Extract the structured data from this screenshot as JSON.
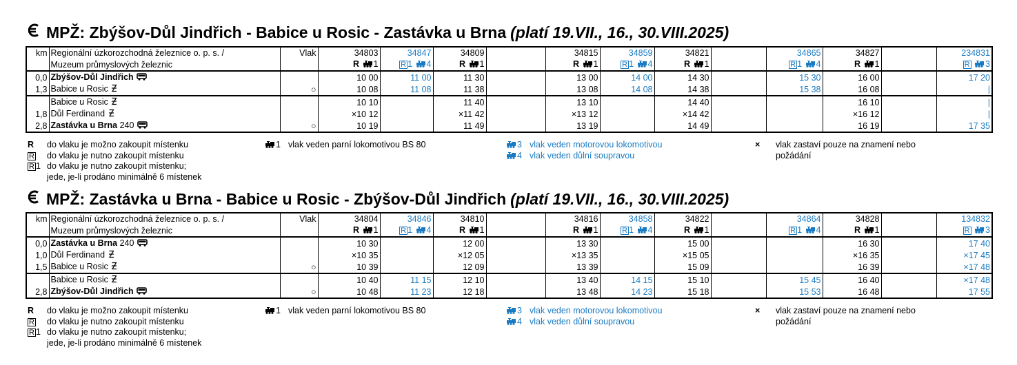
{
  "timetables": [
    {
      "title": {
        "main": "MPŽ: Zbýšov-Důl Jindřich - Babice u Rosic - Zastávka u Brna",
        "note": "(platí 19.VII., 16., 30.VIII.2025)"
      },
      "header": {
        "km": "km",
        "operator": [
          "Regionální úzkorozchodná železnice o. p. s. /",
          "Muzeum průmyslových železnic"
        ],
        "vlak": "Vlak"
      },
      "trains": [
        {
          "number": "34803",
          "mark": "R",
          "boxed": false,
          "loco": "1",
          "color": "#000000"
        },
        {
          "number": "34847",
          "mark": "R",
          "mark_sub": "1",
          "boxed": true,
          "loco": "4",
          "color": "#1a7bc3"
        },
        {
          "number": "34809",
          "mark": "R",
          "boxed": false,
          "loco": "1",
          "color": "#000000"
        },
        {
          "number": "34815",
          "mark": "R",
          "boxed": false,
          "loco": "1",
          "color": "#000000"
        },
        {
          "number": "34859",
          "mark": "R",
          "mark_sub": "1",
          "boxed": true,
          "loco": "4",
          "color": "#1a7bc3"
        },
        {
          "number": "34821",
          "mark": "R",
          "boxed": false,
          "loco": "1",
          "color": "#000000"
        },
        {
          "number": "34865",
          "mark": "R",
          "mark_sub": "1",
          "boxed": true,
          "loco": "4",
          "color": "#1a7bc3"
        },
        {
          "number": "34827",
          "mark": "R",
          "boxed": false,
          "loco": "1",
          "color": "#000000"
        },
        {
          "number": "234831",
          "mark": "R",
          "boxed": true,
          "loco": "3",
          "color": "#1a7bc3"
        }
      ],
      "group_break": 2,
      "stations": [
        {
          "km": "0,0",
          "name": "Zbýšov-Důl Jindřich",
          "bold": true,
          "icon": "bus",
          "times": [
            "10 00",
            "11 00",
            "11 30",
            "13 00",
            "14 00",
            "14 30",
            "15 30",
            "16 00",
            "17 20"
          ]
        },
        {
          "km": "1,3",
          "name": "Babice u Rosic",
          "bold": false,
          "icon": "stop",
          "symbol": "○",
          "times": [
            "10 08",
            "11 08",
            "11 38",
            "13 08",
            "14 08",
            "14 38",
            "15 38",
            "16 08",
            "|"
          ]
        },
        {
          "name": "Babice u Rosic",
          "bold": false,
          "icon": "stop",
          "times": [
            "10 10",
            null,
            "11 40",
            "13 10",
            null,
            "14 40",
            null,
            "16 10",
            "|"
          ]
        },
        {
          "km": "1,8",
          "name": "Důl Ferdinand",
          "bold": false,
          "icon": "stop",
          "times": [
            "×10 12",
            null,
            "×11 42",
            "×13 12",
            null,
            "×14 42",
            null,
            "×16 12",
            "|"
          ]
        },
        {
          "km": "2,8",
          "name": "Zastávka u Brna",
          "suffix": "240",
          "bold": true,
          "icon": "bus",
          "symbol": "○",
          "times": [
            "10 19",
            null,
            "11 49",
            "13 19",
            null,
            "14 49",
            null,
            "16 19",
            "17 35"
          ]
        }
      ],
      "legend": [
        [
          {
            "key": "R",
            "boxed": false,
            "lines": [
              "do vlaku je možno zakoupit místenku"
            ]
          },
          {
            "key": "R",
            "boxed": true,
            "lines": [
              "do vlaku je nutno zakoupit místenku"
            ]
          },
          {
            "key": "R",
            "key_sub": "1",
            "boxed": true,
            "lines": [
              "do vlaku je nutno zakoupit místenku;",
              "jede, je-li prodáno minimálně 6 místenek"
            ]
          }
        ],
        [
          {
            "loco": "1",
            "color": "#000000",
            "lines": [
              "vlak veden parní lokomotivou BS 80"
            ]
          }
        ],
        [
          {
            "loco": "3",
            "color": "#1a7bc3",
            "lines": [
              "vlak veden motorovou lokomotivou"
            ]
          },
          {
            "loco": "4",
            "color": "#1a7bc3",
            "lines": [
              "vlak veden důlní soupravou"
            ]
          }
        ],
        [
          {
            "key": "×",
            "boxed": false,
            "lines": [
              "vlak zastaví pouze na znamení nebo",
              "požádání"
            ]
          }
        ]
      ]
    },
    {
      "title": {
        "main": "MPŽ: Zastávka u Brna - Babice u Rosic - Zbýšov-Důl Jindřich",
        "note": "(platí 19.VII., 16., 30.VIII.2025)"
      },
      "header": {
        "km": "km",
        "operator": [
          "Regionální úzkorozchodná železnice o. p. s. /",
          "Muzeum průmyslových železnic"
        ],
        "vlak": "Vlak"
      },
      "trains": [
        {
          "number": "34804",
          "mark": "R",
          "boxed": false,
          "loco": "1",
          "color": "#000000"
        },
        {
          "number": "34846",
          "mark": "R",
          "mark_sub": "1",
          "boxed": true,
          "loco": "4",
          "color": "#1a7bc3"
        },
        {
          "number": "34810",
          "mark": "R",
          "boxed": false,
          "loco": "1",
          "color": "#000000"
        },
        {
          "number": "34816",
          "mark": "R",
          "boxed": false,
          "loco": "1",
          "color": "#000000"
        },
        {
          "number": "34858",
          "mark": "R",
          "mark_sub": "1",
          "boxed": true,
          "loco": "4",
          "color": "#1a7bc3"
        },
        {
          "number": "34822",
          "mark": "R",
          "boxed": false,
          "loco": "1",
          "color": "#000000"
        },
        {
          "number": "34864",
          "mark": "R",
          "mark_sub": "1",
          "boxed": true,
          "loco": "4",
          "color": "#1a7bc3"
        },
        {
          "number": "34828",
          "mark": "R",
          "boxed": false,
          "loco": "1",
          "color": "#000000"
        },
        {
          "number": "134832",
          "mark": "R",
          "boxed": true,
          "loco": "3",
          "color": "#1a7bc3"
        }
      ],
      "group_break": 3,
      "stations": [
        {
          "km": "0,0",
          "name": "Zastávka u Brna",
          "suffix": "240",
          "bold": true,
          "icon": "bus",
          "times": [
            "10 30",
            null,
            "12 00",
            "13 30",
            null,
            "15 00",
            null,
            "16 30",
            "17 40"
          ]
        },
        {
          "km": "1,0",
          "name": "Důl Ferdinand",
          "bold": false,
          "icon": "stop",
          "times": [
            "×10 35",
            null,
            "×12 05",
            "×13 35",
            null,
            "×15 05",
            null,
            "×16 35",
            "×17 45"
          ]
        },
        {
          "km": "1,5",
          "name": "Babice u Rosic",
          "bold": false,
          "icon": "stop",
          "symbol": "○",
          "times": [
            "10 39",
            null,
            "12 09",
            "13 39",
            null,
            "15 09",
            null,
            "16 39",
            "×17 48"
          ]
        },
        {
          "name": "Babice u Rosic",
          "bold": false,
          "icon": "stop",
          "times": [
            "10 40",
            "11 15",
            "12 10",
            "13 40",
            "14 15",
            "15 10",
            "15 45",
            "16 40",
            "×17 48"
          ]
        },
        {
          "km": "2,8",
          "name": "Zbýšov-Důl Jindřich",
          "bold": true,
          "icon": "bus",
          "symbol": "○",
          "times": [
            "10 48",
            "11 23",
            "12 18",
            "13 48",
            "14 23",
            "15 18",
            "15 53",
            "16 48",
            "17 55"
          ]
        }
      ],
      "legend": [
        [
          {
            "key": "R",
            "boxed": false,
            "lines": [
              "do vlaku je možno zakoupit místenku"
            ]
          },
          {
            "key": "R",
            "boxed": true,
            "lines": [
              "do vlaku je nutno zakoupit místenku"
            ]
          },
          {
            "key": "R",
            "key_sub": "1",
            "boxed": true,
            "lines": [
              "do vlaku je nutno zakoupit místenku;",
              "jede, je-li prodáno minimálně 6 místenek"
            ]
          }
        ],
        [
          {
            "loco": "1",
            "color": "#000000",
            "lines": [
              "vlak veden parní lokomotivou BS 80"
            ]
          }
        ],
        [
          {
            "loco": "3",
            "color": "#1a7bc3",
            "lines": [
              "vlak veden motorovou lokomotivou"
            ]
          },
          {
            "loco": "4",
            "color": "#1a7bc3",
            "lines": [
              "vlak veden důlní soupravou"
            ]
          }
        ],
        [
          {
            "key": "×",
            "boxed": false,
            "lines": [
              "vlak zastaví pouze na znamení nebo",
              "požádání"
            ]
          }
        ]
      ]
    }
  ]
}
